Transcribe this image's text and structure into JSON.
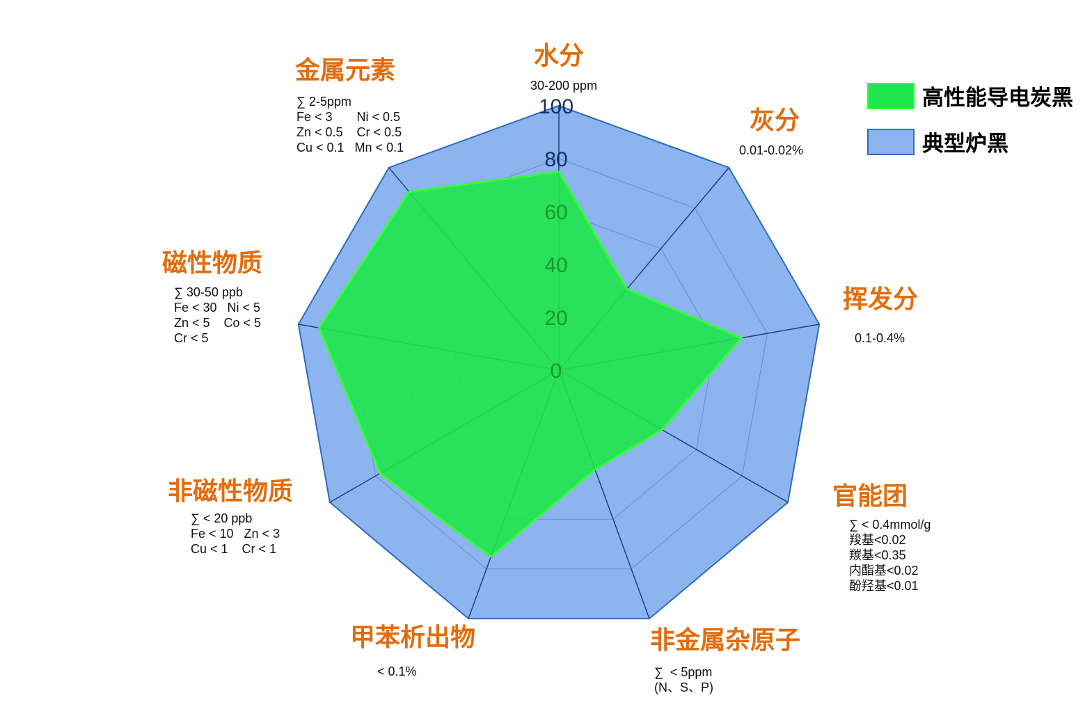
{
  "chart_data": {
    "type": "radar",
    "title": "",
    "rlim": [
      0,
      100
    ],
    "ticks": [
      "0",
      "20",
      "40",
      "60",
      "80",
      "100"
    ],
    "axes": [
      {
        "label": "水分",
        "spec": [
          "30-200 ppm"
        ]
      },
      {
        "label": "灰分",
        "spec": [
          "0.01-0.02%"
        ]
      },
      {
        "label": "挥发分",
        "spec": [
          "0.1-0.4%"
        ]
      },
      {
        "label": "官能团",
        "spec": [
          "∑ < 0.4mmol/g",
          "羧基<0.02",
          "羰基<0.35",
          "内酯基<0.02",
          "酚羟基<0.01"
        ]
      },
      {
        "label": "非金属杂原子",
        "spec": [
          "∑  < 5ppm",
          "(N、S、P)"
        ]
      },
      {
        "label": "甲苯析出物",
        "spec": [
          "< 0.1%"
        ]
      },
      {
        "label": "非磁性物质",
        "spec": [
          "∑ < 20 ppb",
          "Fe < 10   Zn < 3",
          "Cu < 1    Cr < 1"
        ]
      },
      {
        "label": "磁性物质",
        "spec": [
          "∑ 30-50 ppb",
          "Fe < 30   Ni < 5",
          "Zn < 5    Co < 5",
          "Cr < 5"
        ]
      },
      {
        "label": "金属元素",
        "spec": [
          "∑ 2-5ppm",
          "Fe < 3       Ni < 0.5",
          "Zn < 0.5    Cr < 0.5",
          "Cu < 0.1   Mn < 0.1"
        ]
      }
    ],
    "series": [
      {
        "name": "典型炉黑",
        "color": "#8cb4ee",
        "stroke": "#2e6bbf",
        "values": [
          100,
          100,
          100,
          100,
          100,
          100,
          100,
          100,
          100
        ]
      },
      {
        "name": "高性能导电炭黑",
        "color": "#1ee64a",
        "stroke": "#33ff33",
        "values": [
          75,
          40,
          70,
          45,
          40,
          75,
          78,
          92,
          88
        ]
      }
    ],
    "legend_position": "top-right",
    "grid": true
  }
}
